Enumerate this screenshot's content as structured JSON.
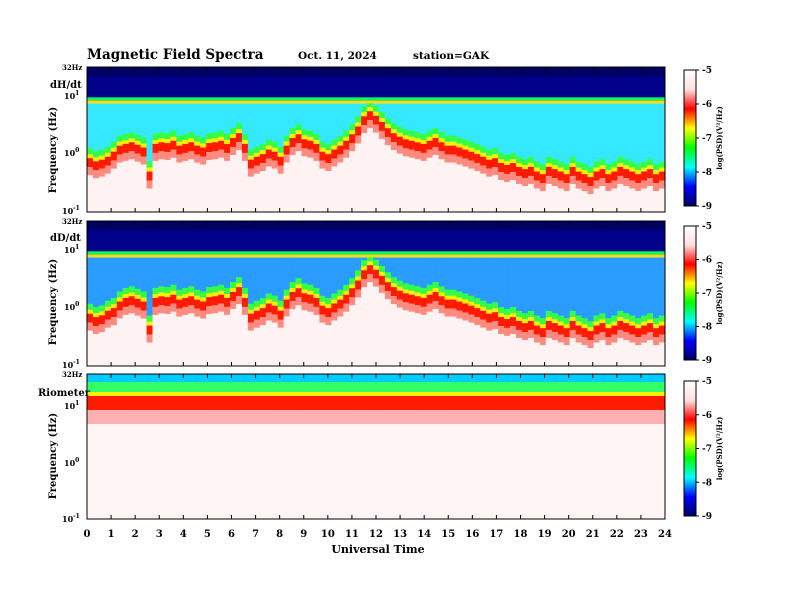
{
  "header": {
    "title": "Magnetic  Field  Spectra",
    "date": "Oct. 11, 2024",
    "station": "station=GAK"
  },
  "x_axis": {
    "label": "Universal Time",
    "ticks": [
      "0",
      "1",
      "2",
      "3",
      "4",
      "5",
      "6",
      "7",
      "8",
      "9",
      "10",
      "11",
      "12",
      "13",
      "14",
      "15",
      "16",
      "17",
      "18",
      "19",
      "20",
      "21",
      "22",
      "23",
      "24"
    ]
  },
  "colorbar": {
    "label": "log(PSD)(V²/Hz)",
    "ticks": [
      "-5",
      "-6",
      "-7",
      "-8",
      "-9"
    ],
    "colors": [
      "#000060",
      "#0000ff",
      "#00ffff",
      "#00ff00",
      "#ffff00",
      "#ff0000",
      "#ffe0e0",
      "#ffffff"
    ]
  },
  "chart_data": [
    {
      "type": "heatmap",
      "panel_label": "dH/dt",
      "ylabel": "Frequency (Hz)",
      "y_scale": "log",
      "y_top_label": "32Hz",
      "y_ticks": [
        {
          "base": "10",
          "exp": "1"
        },
        {
          "base": "10",
          "exp": "0"
        },
        {
          "base": "10",
          "exp": "-1"
        }
      ],
      "xlim": [
        0,
        24
      ],
      "ylim": [
        0.1,
        32
      ],
      "zlim": [
        -9,
        -5
      ],
      "z_label": "log(PSD)(V²/Hz)",
      "cutoff_hz": [
        0.85,
        0.75,
        0.8,
        0.9,
        1.1,
        1.4,
        1.5,
        1.6,
        1.45,
        1.3,
        0.5,
        1.5,
        1.6,
        1.55,
        1.7,
        1.4,
        1.5,
        1.6,
        1.4,
        1.3,
        1.55,
        1.6,
        1.7,
        1.5,
        1.9,
        2.3,
        1.5,
        0.8,
        0.9,
        1.0,
        1.2,
        1.1,
        0.9,
        1.4,
        1.9,
        2.2,
        1.8,
        1.7,
        1.5,
        1.1,
        1.0,
        1.2,
        1.4,
        1.7,
        2.2,
        3.0,
        4.5,
        5.5,
        4.6,
        3.6,
        2.8,
        2.3,
        2.0,
        1.8,
        1.7,
        1.6,
        1.5,
        1.7,
        1.9,
        1.6,
        1.4,
        1.4,
        1.3,
        1.2,
        1.1,
        1.0,
        0.9,
        0.8,
        0.85,
        0.7,
        0.65,
        0.7,
        0.6,
        0.55,
        0.6,
        0.5,
        0.45,
        0.6,
        0.55,
        0.5,
        0.45,
        0.6,
        0.5,
        0.45,
        0.4,
        0.5,
        0.55,
        0.45,
        0.5,
        0.6,
        0.55,
        0.5,
        0.45,
        0.5,
        0.55,
        0.45,
        0.5
      ],
      "band_hz": [
        8.5,
        7.5
      ]
    },
    {
      "type": "heatmap",
      "panel_label": "dD/dt",
      "ylabel": "Frequency (Hz)",
      "y_scale": "log",
      "y_top_label": "32Hz",
      "y_ticks": [
        {
          "base": "10",
          "exp": "1"
        },
        {
          "base": "10",
          "exp": "0"
        },
        {
          "base": "10",
          "exp": "-1"
        }
      ],
      "xlim": [
        0,
        24
      ],
      "ylim": [
        0.1,
        32
      ],
      "zlim": [
        -9,
        -5
      ],
      "z_label": "log(PSD)(V²/Hz)",
      "cutoff_hz": [
        0.8,
        0.7,
        0.75,
        0.9,
        1.0,
        1.3,
        1.5,
        1.6,
        1.45,
        1.3,
        0.5,
        1.5,
        1.6,
        1.55,
        1.7,
        1.4,
        1.5,
        1.6,
        1.4,
        1.3,
        1.55,
        1.6,
        1.7,
        1.5,
        1.9,
        2.3,
        1.5,
        0.8,
        0.9,
        1.0,
        1.2,
        1.1,
        0.9,
        1.4,
        1.9,
        2.2,
        1.8,
        1.7,
        1.5,
        1.1,
        1.0,
        1.2,
        1.4,
        1.7,
        2.2,
        3.0,
        4.5,
        5.5,
        4.6,
        3.6,
        2.8,
        2.3,
        2.0,
        1.8,
        1.7,
        1.6,
        1.5,
        1.7,
        1.9,
        1.6,
        1.4,
        1.4,
        1.3,
        1.2,
        1.1,
        1.0,
        0.9,
        0.8,
        0.85,
        0.7,
        0.65,
        0.7,
        0.6,
        0.55,
        0.6,
        0.5,
        0.45,
        0.6,
        0.55,
        0.5,
        0.45,
        0.6,
        0.5,
        0.45,
        0.4,
        0.5,
        0.55,
        0.45,
        0.5,
        0.6,
        0.55,
        0.5,
        0.45,
        0.5,
        0.55,
        0.45,
        0.5
      ],
      "band_hz": [
        8.5,
        7.5
      ]
    },
    {
      "type": "heatmap",
      "panel_label": "Riometer",
      "ylabel": "Frequency (Hz)",
      "y_scale": "log",
      "y_top_label": "32Hz",
      "y_ticks": [
        {
          "base": "10",
          "exp": "1"
        },
        {
          "base": "10",
          "exp": "0"
        },
        {
          "base": "10",
          "exp": "-1"
        }
      ],
      "xlim": [
        0,
        24
      ],
      "ylim": [
        0.1,
        32
      ],
      "zlim": [
        -9,
        -5
      ],
      "z_label": "log(PSD)(V²/Hz)",
      "cutoff_hz": [
        10,
        10,
        10,
        10,
        10,
        10,
        10,
        10,
        10,
        10,
        10,
        10,
        10,
        10,
        10,
        10,
        10,
        10,
        10,
        10,
        10,
        10,
        10,
        10,
        10,
        10,
        10,
        10,
        10,
        10,
        10,
        10,
        10,
        10,
        10,
        10,
        10,
        10,
        10,
        10,
        10,
        10,
        10,
        10,
        10,
        10,
        10,
        10,
        10,
        10,
        10,
        10,
        10,
        10,
        10,
        10,
        10,
        10,
        10,
        10,
        10,
        10,
        10,
        10,
        10,
        10,
        10,
        10,
        10,
        10,
        10,
        10,
        10,
        10,
        10,
        10,
        10,
        10,
        10,
        10,
        10,
        10,
        10,
        10,
        10,
        10,
        10,
        10,
        10,
        10,
        10,
        10,
        10,
        10,
        10,
        10,
        10
      ],
      "band_hz": [
        14,
        10
      ]
    }
  ]
}
